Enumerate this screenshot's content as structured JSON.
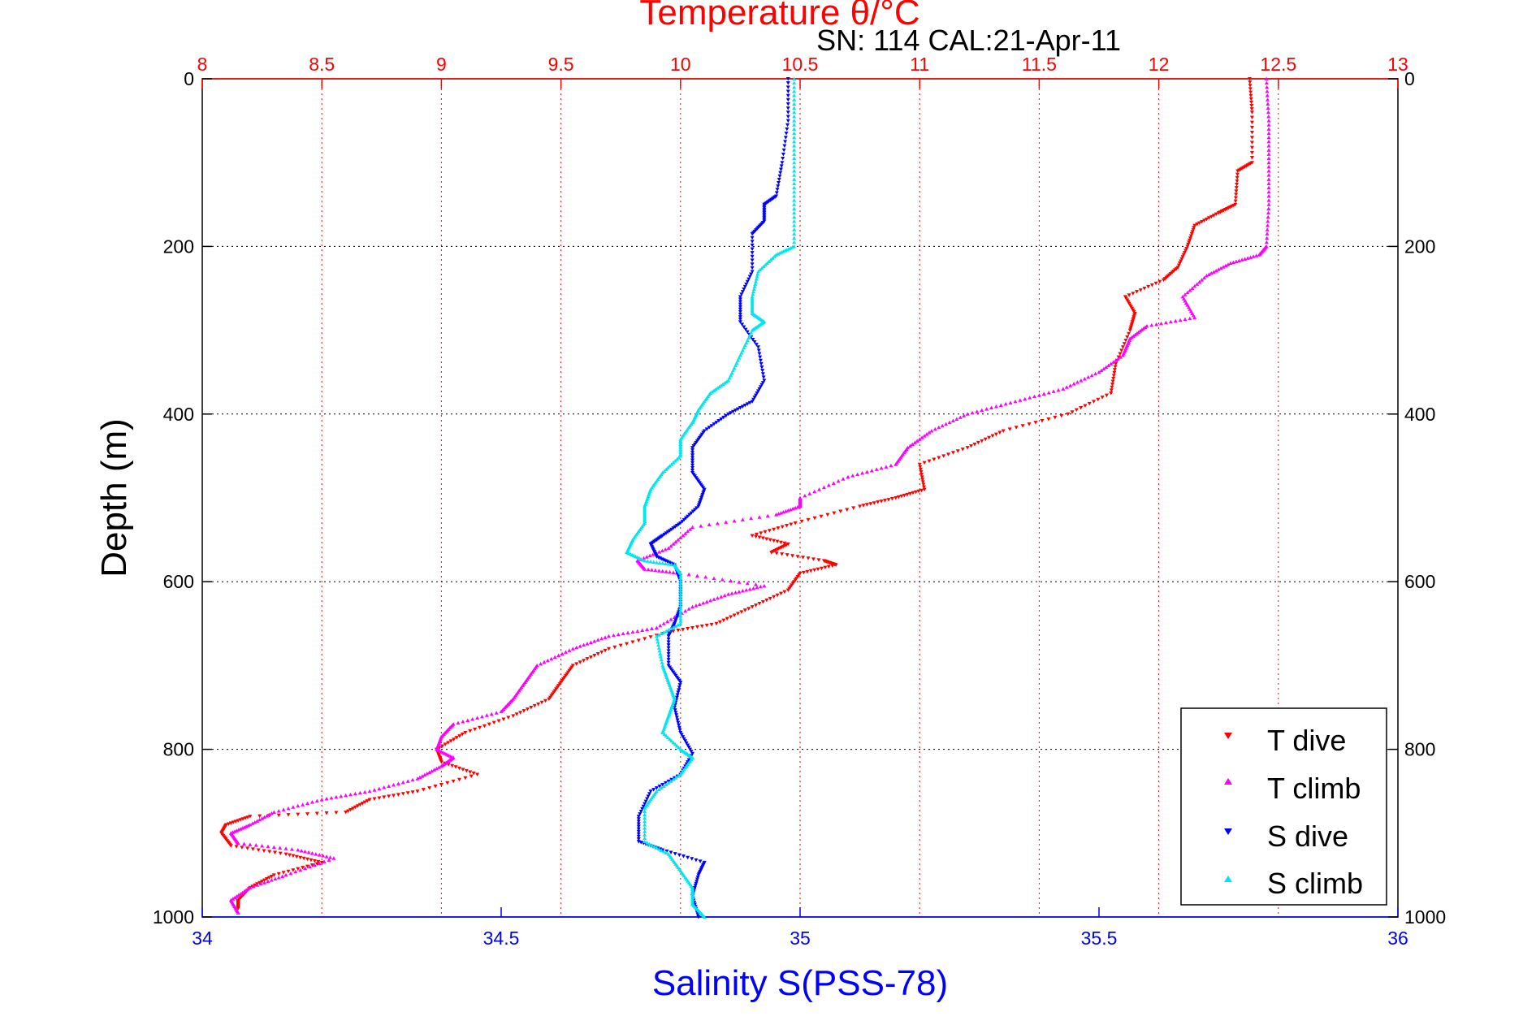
{
  "chart_data": {
    "type": "scatter",
    "title": "Temperature θ/°C",
    "subtitle": "SN: 114  CAL:21-Apr-11",
    "xlabel_bottom": "Salinity S(PSS-78)",
    "xlabel_top": "Temperature θ/°C",
    "ylabel": "Depth (m)",
    "x_bottom_range": [
      34,
      36
    ],
    "x_top_range": [
      8,
      13
    ],
    "y_range": [
      0,
      1000
    ],
    "y_inverted": true,
    "x_bottom_ticks": [
      "34",
      "34.5",
      "35",
      "35.5",
      "36"
    ],
    "x_top_ticks": [
      "8",
      "8.5",
      "9",
      "9.5",
      "10",
      "10.5",
      "11",
      "11.5",
      "12",
      "12.5",
      "13"
    ],
    "y_ticks": [
      "0",
      "200",
      "400",
      "600",
      "800",
      "1000"
    ],
    "grid": true,
    "legend_position": "bottom-right",
    "colors": {
      "top_axis": "#ff0000",
      "bottom_axis": "#0000ff",
      "grid": "#000000"
    },
    "series": [
      {
        "name": "T dive",
        "axis": "top",
        "color": "#ff0000",
        "marker": "triangle-down",
        "points": [
          [
            12.38,
            0
          ],
          [
            12.39,
            40
          ],
          [
            12.39,
            100
          ],
          [
            12.33,
            110
          ],
          [
            12.32,
            150
          ],
          [
            12.25,
            160
          ],
          [
            12.15,
            175
          ],
          [
            12.12,
            200
          ],
          [
            12.08,
            225
          ],
          [
            12.02,
            240
          ],
          [
            11.86,
            260
          ],
          [
            11.9,
            280
          ],
          [
            11.88,
            300
          ],
          [
            11.82,
            340
          ],
          [
            11.8,
            375
          ],
          [
            11.62,
            400
          ],
          [
            11.35,
            420
          ],
          [
            11.2,
            440
          ],
          [
            11.0,
            460
          ],
          [
            11.02,
            490
          ],
          [
            10.9,
            500
          ],
          [
            10.75,
            510
          ],
          [
            10.48,
            530
          ],
          [
            10.3,
            545
          ],
          [
            10.45,
            555
          ],
          [
            10.38,
            565
          ],
          [
            10.6,
            575
          ],
          [
            10.65,
            580
          ],
          [
            10.5,
            590
          ],
          [
            10.45,
            610
          ],
          [
            10.3,
            630
          ],
          [
            10.15,
            650
          ],
          [
            9.95,
            660
          ],
          [
            9.7,
            680
          ],
          [
            9.55,
            700
          ],
          [
            9.5,
            720
          ],
          [
            9.45,
            740
          ],
          [
            9.3,
            760
          ],
          [
            9.1,
            780
          ],
          [
            8.98,
            800
          ],
          [
            9.0,
            815
          ],
          [
            9.15,
            830
          ],
          [
            8.9,
            850
          ],
          [
            8.7,
            860
          ],
          [
            8.6,
            875
          ],
          [
            8.2,
            880
          ],
          [
            8.1,
            890
          ],
          [
            8.08,
            900
          ],
          [
            8.12,
            915
          ],
          [
            8.35,
            925
          ],
          [
            8.5,
            935
          ],
          [
            8.3,
            950
          ],
          [
            8.2,
            965
          ],
          [
            8.15,
            980
          ],
          [
            8.15,
            990
          ]
        ]
      },
      {
        "name": "T climb",
        "axis": "top",
        "color": "#ff00ff",
        "marker": "triangle-up",
        "points": [
          [
            12.45,
            0
          ],
          [
            12.46,
            50
          ],
          [
            12.46,
            100
          ],
          [
            12.46,
            150
          ],
          [
            12.45,
            200
          ],
          [
            12.42,
            210
          ],
          [
            12.3,
            220
          ],
          [
            12.2,
            235
          ],
          [
            12.1,
            260
          ],
          [
            12.15,
            285
          ],
          [
            11.95,
            295
          ],
          [
            11.88,
            310
          ],
          [
            11.85,
            330
          ],
          [
            11.75,
            350
          ],
          [
            11.6,
            370
          ],
          [
            11.4,
            385
          ],
          [
            11.2,
            400
          ],
          [
            11.05,
            420
          ],
          [
            10.95,
            440
          ],
          [
            10.9,
            460
          ],
          [
            10.7,
            475
          ],
          [
            10.5,
            500
          ],
          [
            10.5,
            510
          ],
          [
            10.4,
            520
          ],
          [
            10.05,
            535
          ],
          [
            9.95,
            560
          ],
          [
            9.82,
            575
          ],
          [
            9.85,
            585
          ],
          [
            10.0,
            590
          ],
          [
            10.35,
            605
          ],
          [
            10.2,
            615
          ],
          [
            10.05,
            630
          ],
          [
            9.9,
            655
          ],
          [
            9.7,
            665
          ],
          [
            9.55,
            680
          ],
          [
            9.4,
            700
          ],
          [
            9.35,
            720
          ],
          [
            9.3,
            740
          ],
          [
            9.25,
            755
          ],
          [
            9.05,
            770
          ],
          [
            9.0,
            785
          ],
          [
            8.98,
            800
          ],
          [
            9.05,
            810
          ],
          [
            9.0,
            820
          ],
          [
            8.9,
            835
          ],
          [
            8.7,
            850
          ],
          [
            8.5,
            860
          ],
          [
            8.3,
            875
          ],
          [
            8.2,
            890
          ],
          [
            8.12,
            900
          ],
          [
            8.15,
            912
          ],
          [
            8.4,
            920
          ],
          [
            8.55,
            930
          ],
          [
            8.35,
            950
          ],
          [
            8.2,
            965
          ],
          [
            8.12,
            980
          ],
          [
            8.15,
            995
          ]
        ]
      },
      {
        "name": "S dive",
        "axis": "bottom",
        "color": "#0000ff",
        "marker": "triangle-down",
        "points": [
          [
            34.98,
            0
          ],
          [
            34.98,
            50
          ],
          [
            34.97,
            100
          ],
          [
            34.96,
            140
          ],
          [
            34.94,
            150
          ],
          [
            34.94,
            170
          ],
          [
            34.92,
            185
          ],
          [
            34.92,
            230
          ],
          [
            34.9,
            260
          ],
          [
            34.9,
            290
          ],
          [
            34.93,
            320
          ],
          [
            34.94,
            360
          ],
          [
            34.92,
            385
          ],
          [
            34.88,
            400
          ],
          [
            34.84,
            420
          ],
          [
            34.82,
            440
          ],
          [
            34.82,
            470
          ],
          [
            34.84,
            490
          ],
          [
            34.83,
            510
          ],
          [
            34.8,
            530
          ],
          [
            34.77,
            545
          ],
          [
            34.75,
            555
          ],
          [
            34.76,
            570
          ],
          [
            34.79,
            580
          ],
          [
            34.8,
            600
          ],
          [
            34.8,
            630
          ],
          [
            34.79,
            650
          ],
          [
            34.78,
            665
          ],
          [
            34.78,
            700
          ],
          [
            34.8,
            720
          ],
          [
            34.79,
            750
          ],
          [
            34.8,
            780
          ],
          [
            34.82,
            805
          ],
          [
            34.8,
            830
          ],
          [
            34.75,
            850
          ],
          [
            34.73,
            880
          ],
          [
            34.73,
            910
          ],
          [
            34.77,
            920
          ],
          [
            34.84,
            935
          ],
          [
            34.83,
            950
          ],
          [
            34.82,
            975
          ],
          [
            34.83,
            1000
          ]
        ]
      },
      {
        "name": "S climb",
        "axis": "bottom",
        "color": "#00e5ee",
        "marker": "triangle-up",
        "points": [
          [
            34.99,
            0
          ],
          [
            34.99,
            50
          ],
          [
            34.99,
            100
          ],
          [
            34.99,
            150
          ],
          [
            34.99,
            200
          ],
          [
            34.96,
            210
          ],
          [
            34.93,
            230
          ],
          [
            34.92,
            260
          ],
          [
            34.92,
            280
          ],
          [
            34.94,
            290
          ],
          [
            34.92,
            300
          ],
          [
            34.9,
            330
          ],
          [
            34.88,
            360
          ],
          [
            34.85,
            375
          ],
          [
            34.83,
            395
          ],
          [
            34.82,
            410
          ],
          [
            34.8,
            430
          ],
          [
            34.8,
            450
          ],
          [
            34.77,
            470
          ],
          [
            34.75,
            490
          ],
          [
            34.74,
            510
          ],
          [
            34.74,
            530
          ],
          [
            34.72,
            550
          ],
          [
            34.71,
            565
          ],
          [
            34.74,
            575
          ],
          [
            34.79,
            580
          ],
          [
            34.8,
            590
          ],
          [
            34.8,
            620
          ],
          [
            34.8,
            650
          ],
          [
            34.76,
            665
          ],
          [
            34.77,
            700
          ],
          [
            34.78,
            720
          ],
          [
            34.79,
            740
          ],
          [
            34.78,
            760
          ],
          [
            34.77,
            780
          ],
          [
            34.8,
            800
          ],
          [
            34.82,
            810
          ],
          [
            34.8,
            830
          ],
          [
            34.76,
            850
          ],
          [
            34.74,
            870
          ],
          [
            34.74,
            910
          ],
          [
            34.78,
            925
          ],
          [
            34.8,
            945
          ],
          [
            34.82,
            965
          ],
          [
            34.82,
            985
          ],
          [
            34.84,
            1000
          ]
        ]
      }
    ]
  }
}
